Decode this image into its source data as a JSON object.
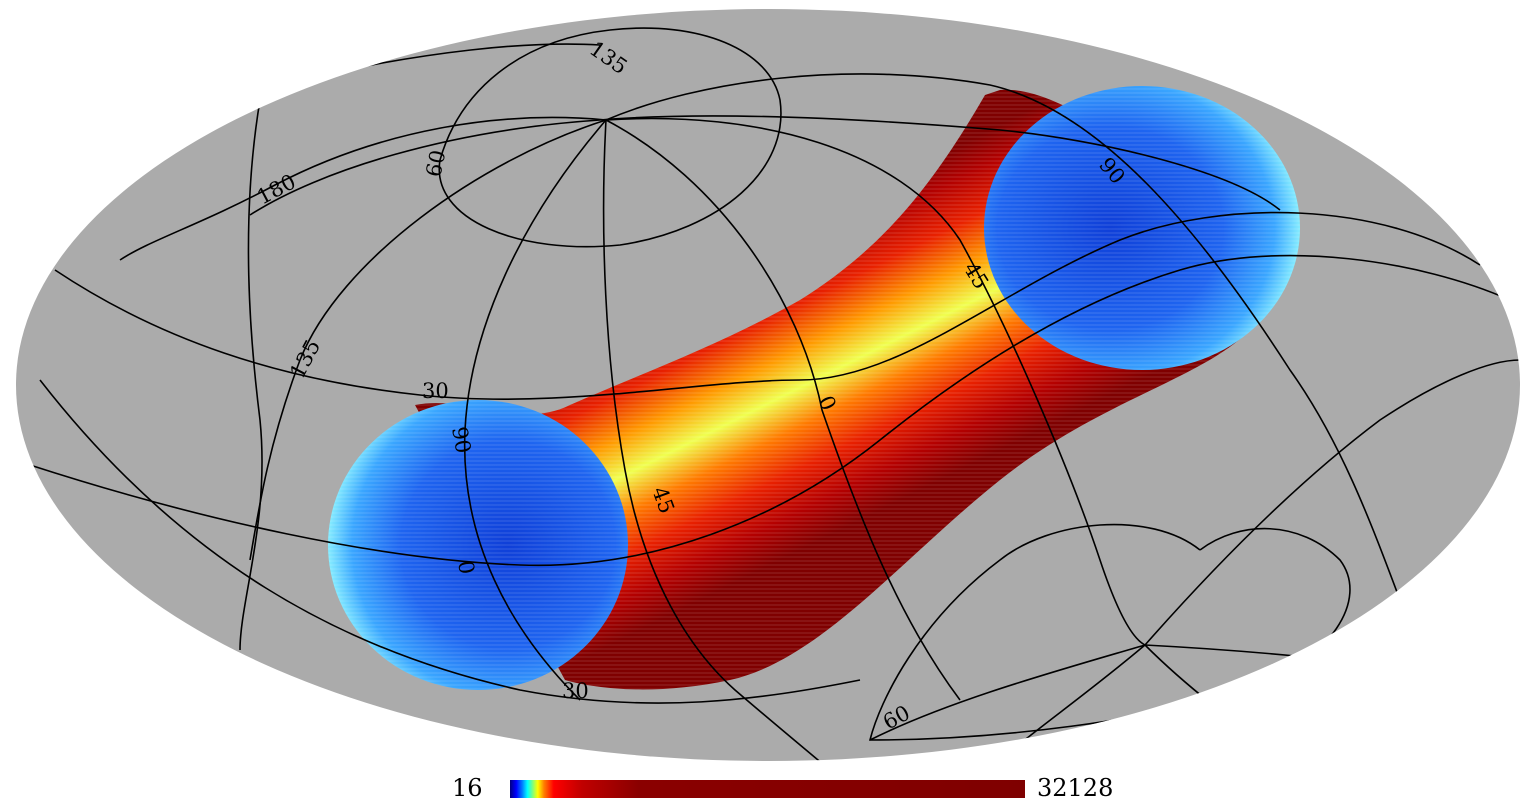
{
  "colors": {
    "background": "#ffffff",
    "sphere_fill": "#ababab",
    "grid": "#000000",
    "colormap": [
      "#00007f",
      "#0000ff",
      "#007fff",
      "#00ffff",
      "#7fff7f",
      "#ffff00",
      "#ff7f00",
      "#ff0000",
      "#7f0000"
    ]
  },
  "projection": "mollweide",
  "colorbar": {
    "min_label": "16",
    "max_label": "32128",
    "scale": "histogram-equalized"
  },
  "graticule_labels": {
    "lon_135_top": "135",
    "lon_180": "180",
    "lon_135_left": "135",
    "lat_60_top": "60",
    "lon_90_left": "90",
    "lat_30_left": "30",
    "lat_0": "0",
    "lat_45": "45",
    "lon_0": "0",
    "lon_45": "45",
    "lon_90_right": "90",
    "lat_30_bottom": "30",
    "lat_60_bottom": "60"
  }
}
